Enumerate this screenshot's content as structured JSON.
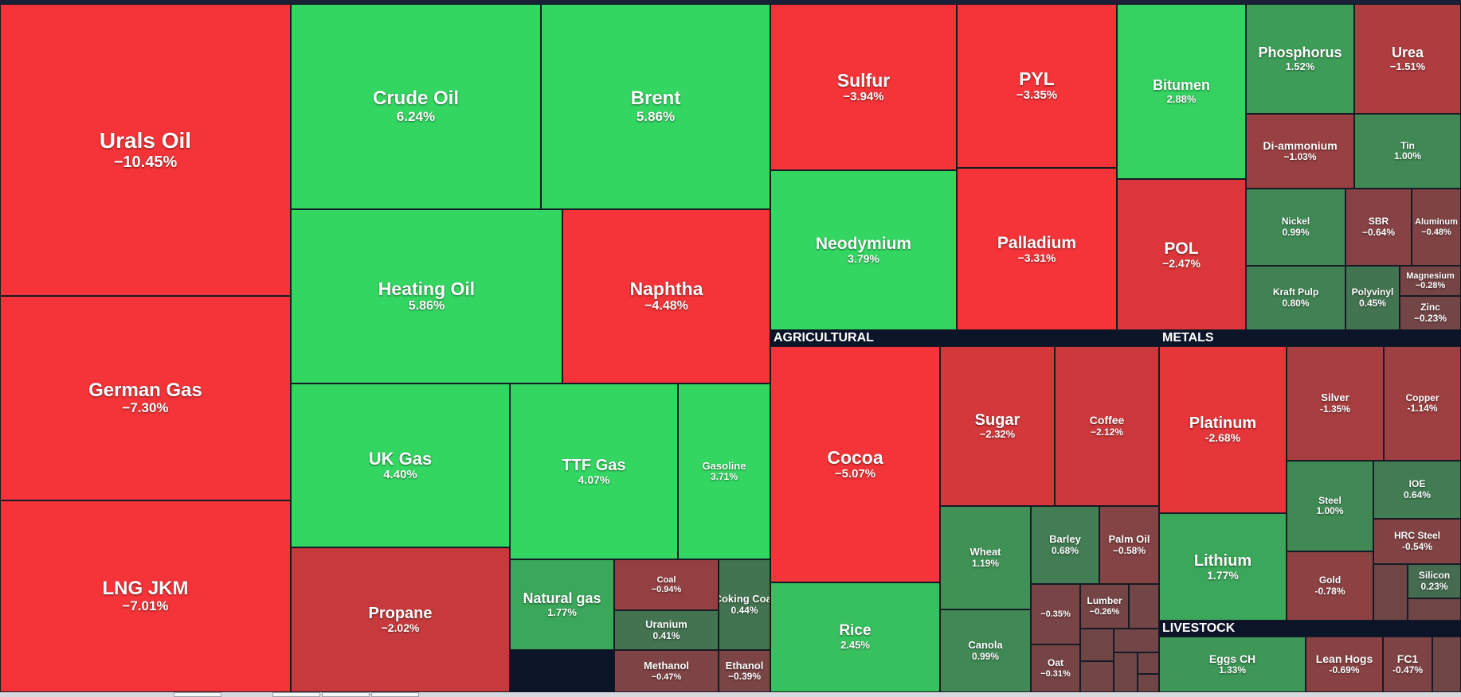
{
  "chart_data": {
    "type": "treemap",
    "unit": "%",
    "sections": [
      {
        "name": "",
        "items": [
          {
            "name": "Urals Oil",
            "change": "−10.45%",
            "value": -10.45
          },
          {
            "name": "German Gas",
            "change": "−7.30%",
            "value": -7.3
          },
          {
            "name": "LNG JKM",
            "change": "−7.01%",
            "value": -7.01
          },
          {
            "name": "Crude Oil",
            "change": "6.24%",
            "value": 6.24
          },
          {
            "name": "Brent",
            "change": "5.86%",
            "value": 5.86
          },
          {
            "name": "Heating Oil",
            "change": "5.86%",
            "value": 5.86
          },
          {
            "name": "Naphtha",
            "change": "−4.48%",
            "value": -4.48
          },
          {
            "name": "UK Gas",
            "change": "4.40%",
            "value": 4.4
          },
          {
            "name": "TTF Gas",
            "change": "4.07%",
            "value": 4.07
          },
          {
            "name": "Gasoline",
            "change": "3.71%",
            "value": 3.71
          },
          {
            "name": "Propane",
            "change": "−2.02%",
            "value": -2.02
          },
          {
            "name": "Natural gas",
            "change": "1.77%",
            "value": 1.77
          },
          {
            "name": "Coal",
            "change": "−0.94%",
            "value": -0.94
          },
          {
            "name": "Coking Coal",
            "change": "0.44%",
            "value": 0.44
          },
          {
            "name": "Uranium",
            "change": "0.41%",
            "value": 0.41
          },
          {
            "name": "Methanol",
            "change": "−0.47%",
            "value": -0.47
          },
          {
            "name": "Ethanol",
            "change": "−0.39%",
            "value": -0.39
          }
        ]
      },
      {
        "name": "",
        "items": [
          {
            "name": "Sulfur",
            "change": "−3.94%",
            "value": -3.94
          },
          {
            "name": "PYL",
            "change": "−3.35%",
            "value": -3.35
          },
          {
            "name": "Bitumen",
            "change": "2.88%",
            "value": 2.88
          },
          {
            "name": "Neodymium",
            "change": "3.79%",
            "value": 3.79
          },
          {
            "name": "Palladium",
            "change": "−3.31%",
            "value": -3.31
          },
          {
            "name": "POL",
            "change": "−2.47%",
            "value": -2.47
          },
          {
            "name": "Phosphorus",
            "change": "1.52%",
            "value": 1.52
          },
          {
            "name": "Urea",
            "change": "−1.51%",
            "value": -1.51
          },
          {
            "name": "Di-ammonium",
            "change": "−1.03%",
            "value": -1.03
          },
          {
            "name": "Tin",
            "change": "1.00%",
            "value": 1.0
          },
          {
            "name": "Nickel",
            "change": "0.99%",
            "value": 0.99
          },
          {
            "name": "SBR",
            "change": "−0.64%",
            "value": -0.64
          },
          {
            "name": "Aluminum",
            "change": "−0.48%",
            "value": -0.48
          },
          {
            "name": "Kraft Pulp",
            "change": "0.80%",
            "value": 0.8
          },
          {
            "name": "Polyvinyl",
            "change": "0.45%",
            "value": 0.45
          },
          {
            "name": "Magnesium",
            "change": "−0.28%",
            "value": -0.28
          },
          {
            "name": "Zinc",
            "change": "−0.23%",
            "value": -0.23
          }
        ]
      },
      {
        "name": "AGRICULTURAL",
        "items": [
          {
            "name": "Cocoa",
            "change": "−5.07%",
            "value": -5.07
          },
          {
            "name": "Rice",
            "change": "2.45%",
            "value": 2.45
          },
          {
            "name": "Sugar",
            "change": "−2.32%",
            "value": -2.32
          },
          {
            "name": "Coffee",
            "change": "−2.12%",
            "value": -2.12
          },
          {
            "name": "Wheat",
            "change": "1.19%",
            "value": 1.19
          },
          {
            "name": "Barley",
            "change": "0.68%",
            "value": 0.68
          },
          {
            "name": "Palm Oil",
            "change": "−0.58%",
            "value": -0.58
          },
          {
            "name": "",
            "change": "−0.35%",
            "value": -0.35
          },
          {
            "name": "Lumber",
            "change": "−0.26%",
            "value": -0.26
          },
          {
            "name": "Canola",
            "change": "0.99%",
            "value": 0.99
          },
          {
            "name": "Oat",
            "change": "−0.31%",
            "value": -0.31
          }
        ]
      },
      {
        "name": "METALS",
        "items": [
          {
            "name": "Platinum",
            "change": "-2.68%",
            "value": -2.68
          },
          {
            "name": "Silver",
            "change": "-1.35%",
            "value": -1.35
          },
          {
            "name": "Copper",
            "change": "-1.14%",
            "value": -1.14
          },
          {
            "name": "Steel",
            "change": "1.00%",
            "value": 1.0
          },
          {
            "name": "IOE",
            "change": "0.64%",
            "value": 0.64
          },
          {
            "name": "Lithium",
            "change": "1.77%",
            "value": 1.77
          },
          {
            "name": "HRC Steel",
            "change": "-0.54%",
            "value": -0.54
          },
          {
            "name": "Gold",
            "change": "-0.78%",
            "value": -0.78
          },
          {
            "name": "Silicon",
            "change": "0.23%",
            "value": 0.23
          }
        ]
      },
      {
        "name": "LIVESTOCK",
        "items": [
          {
            "name": "Eggs CH",
            "change": "1.33%",
            "value": 1.33
          },
          {
            "name": "Lean Hogs",
            "change": "-0.69%",
            "value": -0.69
          },
          {
            "name": "FC1",
            "change": "-0.47%",
            "value": -0.47
          }
        ]
      }
    ]
  }
}
